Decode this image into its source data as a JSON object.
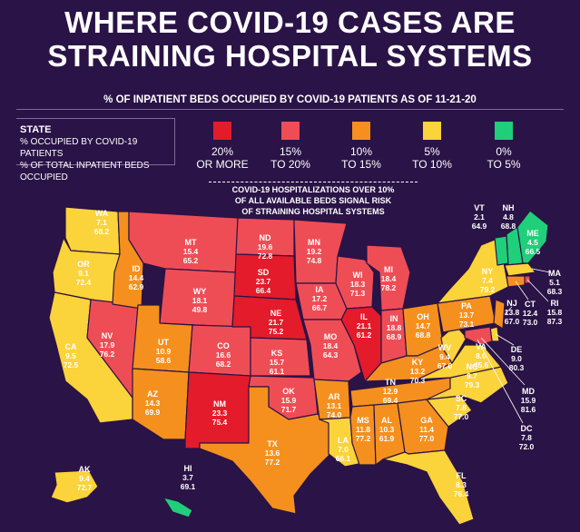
{
  "header": {
    "title_line1": "WHERE COVID-19 CASES ARE",
    "title_line2": "STRAINING HOSPITAL SYSTEMS",
    "subtitle": "% OF INPATIENT BEDS OCCUPIED BY COVID-19 PATIENTS AS OF 11-21-20"
  },
  "key": {
    "line1": "STATE",
    "line2": "% OCCUPIED BY COVID-19 PATIENTS",
    "line3": "% OF TOTAL INPATIENT BEDS OCCUPIED"
  },
  "legend": [
    {
      "line1": "20%",
      "line2": "OR MORE",
      "color": "#e41b2a"
    },
    {
      "line1": "15%",
      "line2": "TO 20%",
      "color": "#ef4d55"
    },
    {
      "line1": "10%",
      "line2": "TO 15%",
      "color": "#f5901e"
    },
    {
      "line1": "5%",
      "line2": "TO 10%",
      "color": "#fbd33a"
    },
    {
      "line1": "0%",
      "line2": "TO 5%",
      "color": "#1fcf79"
    }
  ],
  "note": {
    "line1": "COVID-19 HOSPITALIZATIONS OVER 10%",
    "line2": "OF ALL AVAILABLE BEDS SIGNAL RISK",
    "line3": "OF STRAINING HOSPITAL SYSTEMS"
  },
  "colors": {
    "c20": "#e41b2a",
    "c15": "#ef4d55",
    "c10": "#f5901e",
    "c5": "#fbd33a",
    "c0": "#1fcf79"
  },
  "states": [
    {
      "abbr": "WA",
      "covid": "7.1",
      "total": "68.2",
      "cat": "c5"
    },
    {
      "abbr": "OR",
      "covid": "9.1",
      "total": "72.4",
      "cat": "c5"
    },
    {
      "abbr": "CA",
      "covid": "9.5",
      "total": "72.5",
      "cat": "c5"
    },
    {
      "abbr": "NV",
      "covid": "17.9",
      "total": "76.2",
      "cat": "c15"
    },
    {
      "abbr": "ID",
      "covid": "14.4",
      "total": "62.9",
      "cat": "c10"
    },
    {
      "abbr": "MT",
      "covid": "15.4",
      "total": "65.2",
      "cat": "c15"
    },
    {
      "abbr": "WY",
      "covid": "18.1",
      "total": "49.8",
      "cat": "c15"
    },
    {
      "abbr": "UT",
      "covid": "10.9",
      "total": "58.6",
      "cat": "c10"
    },
    {
      "abbr": "AZ",
      "covid": "14.3",
      "total": "69.9",
      "cat": "c10"
    },
    {
      "abbr": "CO",
      "covid": "16.6",
      "total": "68.2",
      "cat": "c15"
    },
    {
      "abbr": "NM",
      "covid": "23.3",
      "total": "75.4",
      "cat": "c20"
    },
    {
      "abbr": "ND",
      "covid": "19.6",
      "total": "72.8",
      "cat": "c15"
    },
    {
      "abbr": "SD",
      "covid": "23.7",
      "total": "66.4",
      "cat": "c20"
    },
    {
      "abbr": "NE",
      "covid": "21.7",
      "total": "75.2",
      "cat": "c20"
    },
    {
      "abbr": "KS",
      "covid": "15.7",
      "total": "61.1",
      "cat": "c15"
    },
    {
      "abbr": "OK",
      "covid": "15.9",
      "total": "71.7",
      "cat": "c15"
    },
    {
      "abbr": "TX",
      "covid": "13.6",
      "total": "77.2",
      "cat": "c10"
    },
    {
      "abbr": "MN",
      "covid": "19.2",
      "total": "74.8",
      "cat": "c15"
    },
    {
      "abbr": "IA",
      "covid": "17.2",
      "total": "66.7",
      "cat": "c15"
    },
    {
      "abbr": "MO",
      "covid": "18.4",
      "total": "64.3",
      "cat": "c15"
    },
    {
      "abbr": "AR",
      "covid": "13.1",
      "total": "74.0",
      "cat": "c10"
    },
    {
      "abbr": "LA",
      "covid": "7.0",
      "total": "66.1",
      "cat": "c5"
    },
    {
      "abbr": "WI",
      "covid": "18.3",
      "total": "71.3",
      "cat": "c15"
    },
    {
      "abbr": "IL",
      "covid": "21.1",
      "total": "61.2",
      "cat": "c20"
    },
    {
      "abbr": "MI",
      "covid": "18.4",
      "total": "78.2",
      "cat": "c15"
    },
    {
      "abbr": "IN",
      "covid": "18.8",
      "total": "68.9",
      "cat": "c15"
    },
    {
      "abbr": "OH",
      "covid": "14.7",
      "total": "68.8",
      "cat": "c10"
    },
    {
      "abbr": "KY",
      "covid": "13.2",
      "total": "70.3",
      "cat": "c10"
    },
    {
      "abbr": "TN",
      "covid": "12.9",
      "total": "69.4",
      "cat": "c10"
    },
    {
      "abbr": "MS",
      "covid": "11.8",
      "total": "77.2",
      "cat": "c10"
    },
    {
      "abbr": "AL",
      "covid": "10.3",
      "total": "61.9",
      "cat": "c10"
    },
    {
      "abbr": "GA",
      "covid": "11.4",
      "total": "77.0",
      "cat": "c10"
    },
    {
      "abbr": "FL",
      "covid": "8.3",
      "total": "76.4",
      "cat": "c5"
    },
    {
      "abbr": "SC",
      "covid": "7.8",
      "total": "77.0",
      "cat": "c5"
    },
    {
      "abbr": "NC",
      "covid": "9.7",
      "total": "79.3",
      "cat": "c5"
    },
    {
      "abbr": "VA",
      "covid": "8.0",
      "total": "45.6",
      "cat": "c5"
    },
    {
      "abbr": "WV",
      "covid": "9.4",
      "total": "67.0",
      "cat": "c5"
    },
    {
      "abbr": "PA",
      "covid": "13.7",
      "total": "73.1",
      "cat": "c10"
    },
    {
      "abbr": "NY",
      "covid": "7.4",
      "total": "79.2",
      "cat": "c5"
    },
    {
      "abbr": "VT",
      "covid": "2.1",
      "total": "64.9",
      "cat": "c0"
    },
    {
      "abbr": "NH",
      "covid": "4.8",
      "total": "68.8",
      "cat": "c0"
    },
    {
      "abbr": "ME",
      "covid": "4.5",
      "total": "66.5",
      "cat": "c0"
    },
    {
      "abbr": "MA",
      "covid": "5.1",
      "total": "68.3",
      "cat": "c5"
    },
    {
      "abbr": "RI",
      "covid": "15.8",
      "total": "87.3",
      "cat": "c15"
    },
    {
      "abbr": "CT",
      "covid": "12.4",
      "total": "73.0",
      "cat": "c10"
    },
    {
      "abbr": "NJ",
      "covid": "13.8",
      "total": "67.0",
      "cat": "c10"
    },
    {
      "abbr": "DE",
      "covid": "9.0",
      "total": "80.3",
      "cat": "c5"
    },
    {
      "abbr": "MD",
      "covid": "15.9",
      "total": "81.6",
      "cat": "c15"
    },
    {
      "abbr": "DC",
      "covid": "7.8",
      "total": "72.0",
      "cat": "c5"
    },
    {
      "abbr": "AK",
      "covid": "9.4",
      "total": "72.7",
      "cat": "c5"
    },
    {
      "abbr": "HI",
      "covid": "3.7",
      "total": "69.1",
      "cat": "c0"
    }
  ]
}
